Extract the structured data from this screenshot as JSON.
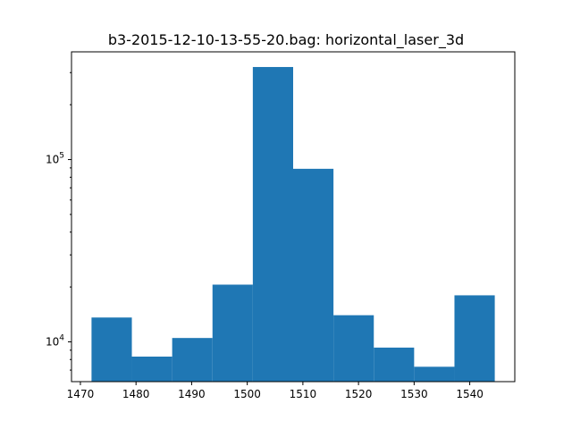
{
  "chart_data": {
    "type": "bar",
    "subtype": "histogram",
    "title": "b3-2015-12-10-13-55-20.bag: horizontal_laser_3d",
    "xlabel": "",
    "ylabel": "",
    "y_scale": "log",
    "grid": false,
    "legend": "none",
    "bar_color": "#1f77b4",
    "xlim": [
      1468.4,
      1548.1
    ],
    "ylim": [
      6050,
      390000
    ],
    "bin_edges": [
      1472.0,
      1479.25,
      1486.5,
      1493.75,
      1501.0,
      1508.25,
      1515.5,
      1522.75,
      1530.0,
      1537.25,
      1544.5
    ],
    "values": [
      13600,
      8300,
      10500,
      20600,
      322000,
      89000,
      14000,
      9300,
      7300,
      18000
    ],
    "x_ticks": [
      {
        "value": 1470,
        "label": "1470"
      },
      {
        "value": 1480,
        "label": "1480"
      },
      {
        "value": 1490,
        "label": "1490"
      },
      {
        "value": 1500,
        "label": "1500"
      },
      {
        "value": 1510,
        "label": "1510"
      },
      {
        "value": 1520,
        "label": "1520"
      },
      {
        "value": 1530,
        "label": "1530"
      },
      {
        "value": 1540,
        "label": "1540"
      }
    ],
    "y_major_ticks": [
      {
        "value": 10000,
        "base": "10",
        "exponent": "4"
      },
      {
        "value": 100000,
        "base": "10",
        "exponent": "5"
      }
    ],
    "y_minor_ticks": [
      7000,
      8000,
      9000,
      20000,
      30000,
      40000,
      50000,
      60000,
      70000,
      80000,
      90000,
      200000,
      300000
    ]
  }
}
